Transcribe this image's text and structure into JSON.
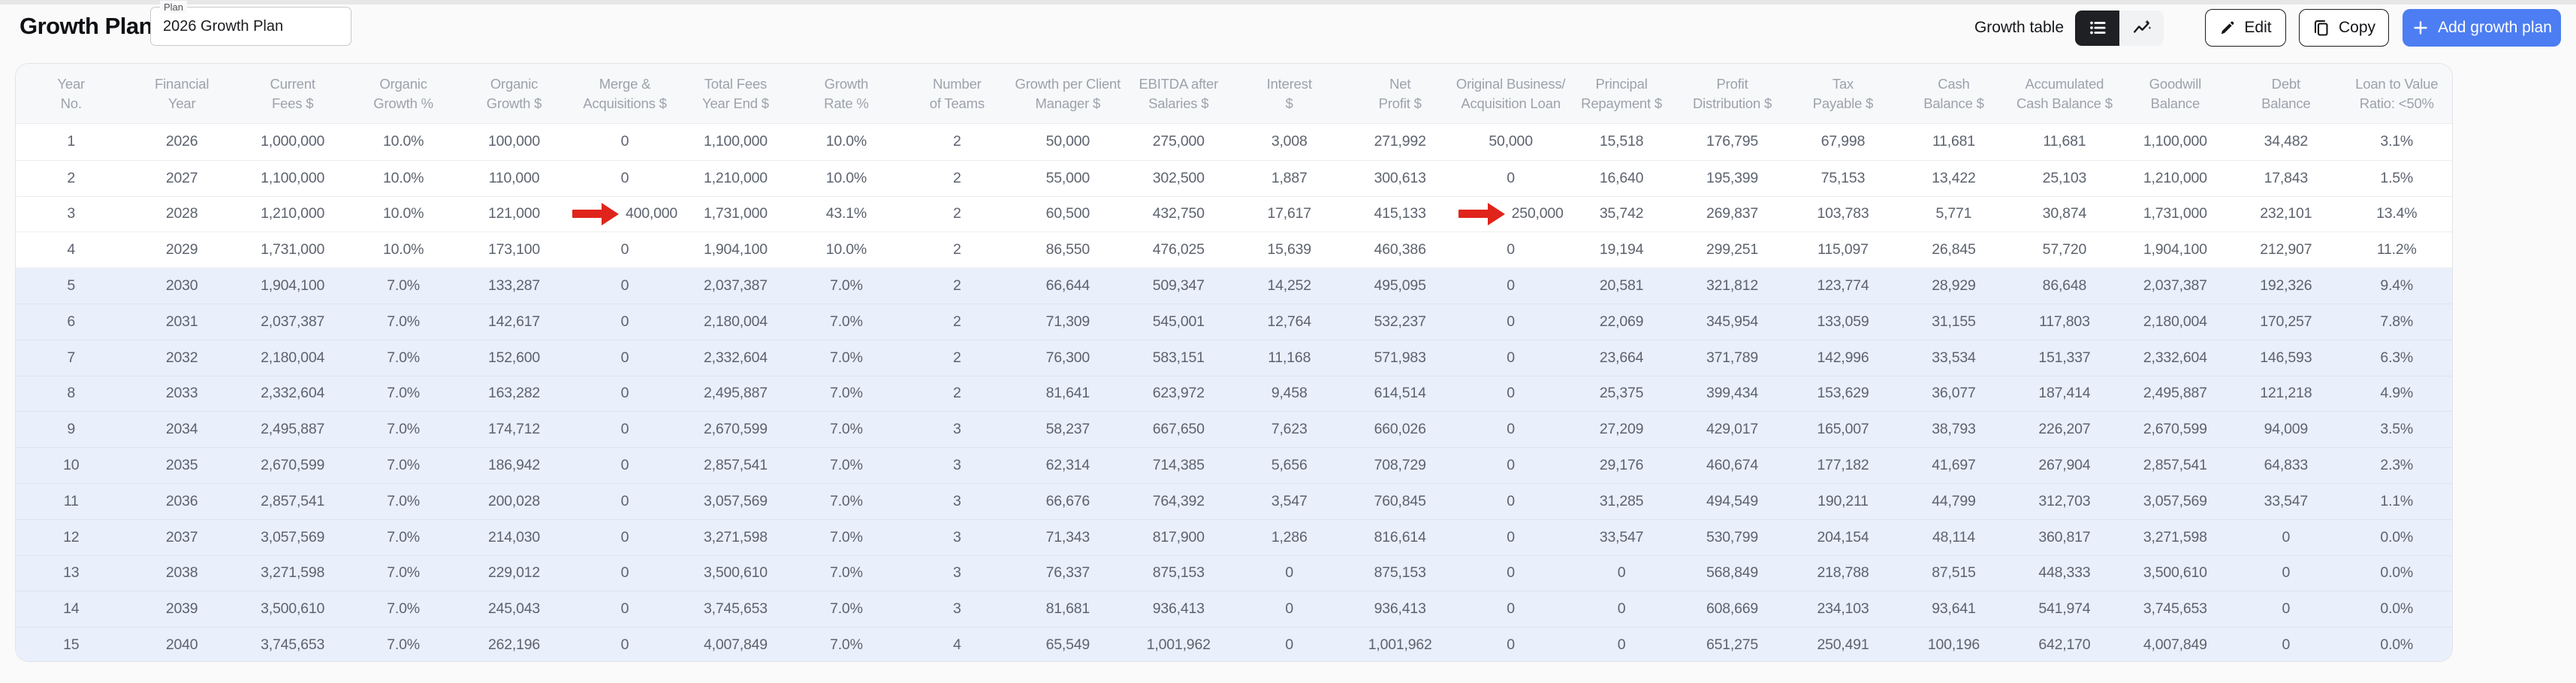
{
  "header": {
    "title": "Growth Plan",
    "plan_field": {
      "label": "Plan",
      "value": "2026 Growth Plan"
    },
    "view_toggle": {
      "label": "Growth table",
      "active": "table",
      "options": [
        "table",
        "chart"
      ]
    },
    "actions": {
      "edit_label": "Edit",
      "copy_label": "Copy",
      "add_label": "Add growth plan"
    }
  },
  "table": {
    "highlighted_rows_from": 5,
    "columns": [
      {
        "key": "year_no",
        "label": "Year\nNo."
      },
      {
        "key": "financial_year",
        "label": "Financial\nYear"
      },
      {
        "key": "current_fees",
        "label": "Current\nFees $"
      },
      {
        "key": "organic_growth_pct",
        "label": "Organic\nGrowth %"
      },
      {
        "key": "organic_growth_amt",
        "label": "Organic\nGrowth $"
      },
      {
        "key": "merge_acquisitions",
        "label": "Merge &\nAcquisitions $"
      },
      {
        "key": "total_fees_year_end",
        "label": "Total Fees\nYear End $"
      },
      {
        "key": "growth_rate_pct",
        "label": "Growth\nRate %"
      },
      {
        "key": "number_of_teams",
        "label": "Number\nof Teams"
      },
      {
        "key": "growth_per_client_manager",
        "label": "Growth per Client\nManager $"
      },
      {
        "key": "ebitda_after_salaries",
        "label": "EBITDA after\nSalaries $"
      },
      {
        "key": "interest",
        "label": "Interest\n$"
      },
      {
        "key": "net_profit",
        "label": "Net\nProfit $"
      },
      {
        "key": "original_business_acquisition_loan",
        "label": "Original Business/\nAcquisition Loan"
      },
      {
        "key": "principal_repayment",
        "label": "Principal\nRepayment $"
      },
      {
        "key": "profit_distribution",
        "label": "Profit\nDistribution $"
      },
      {
        "key": "tax_payable",
        "label": "Tax\nPayable $"
      },
      {
        "key": "cash_balance",
        "label": "Cash\nBalance $"
      },
      {
        "key": "accumulated_cash_balance",
        "label": "Accumulated\nCash Balance $"
      },
      {
        "key": "goodwill_balance",
        "label": "Goodwill\nBalance"
      },
      {
        "key": "debt_balance",
        "label": "Debt\nBalance"
      },
      {
        "key": "loan_to_value_ratio",
        "label": "Loan to Value\nRatio: <50%"
      }
    ],
    "rows": [
      [
        "1",
        "2026",
        "1,000,000",
        "10.0%",
        "100,000",
        "0",
        "1,100,000",
        "10.0%",
        "2",
        "50,000",
        "275,000",
        "3,008",
        "271,992",
        "50,000",
        "15,518",
        "176,795",
        "67,998",
        "11,681",
        "11,681",
        "1,100,000",
        "34,482",
        "3.1%"
      ],
      [
        "2",
        "2027",
        "1,100,000",
        "10.0%",
        "110,000",
        "0",
        "1,210,000",
        "10.0%",
        "2",
        "55,000",
        "302,500",
        "1,887",
        "300,613",
        "0",
        "16,640",
        "195,399",
        "75,153",
        "13,422",
        "25,103",
        "1,210,000",
        "17,843",
        "1.5%"
      ],
      [
        "3",
        "2028",
        "1,210,000",
        "10.0%",
        "121,000",
        "400,000",
        "1,731,000",
        "43.1%",
        "2",
        "60,500",
        "432,750",
        "17,617",
        "415,133",
        "250,000",
        "35,742",
        "269,837",
        "103,783",
        "5,771",
        "30,874",
        "1,731,000",
        "232,101",
        "13.4%"
      ],
      [
        "4",
        "2029",
        "1,731,000",
        "10.0%",
        "173,100",
        "0",
        "1,904,100",
        "10.0%",
        "2",
        "86,550",
        "476,025",
        "15,639",
        "460,386",
        "0",
        "19,194",
        "299,251",
        "115,097",
        "26,845",
        "57,720",
        "1,904,100",
        "212,907",
        "11.2%"
      ],
      [
        "5",
        "2030",
        "1,904,100",
        "7.0%",
        "133,287",
        "0",
        "2,037,387",
        "7.0%",
        "2",
        "66,644",
        "509,347",
        "14,252",
        "495,095",
        "0",
        "20,581",
        "321,812",
        "123,774",
        "28,929",
        "86,648",
        "2,037,387",
        "192,326",
        "9.4%"
      ],
      [
        "6",
        "2031",
        "2,037,387",
        "7.0%",
        "142,617",
        "0",
        "2,180,004",
        "7.0%",
        "2",
        "71,309",
        "545,001",
        "12,764",
        "532,237",
        "0",
        "22,069",
        "345,954",
        "133,059",
        "31,155",
        "117,803",
        "2,180,004",
        "170,257",
        "7.8%"
      ],
      [
        "7",
        "2032",
        "2,180,004",
        "7.0%",
        "152,600",
        "0",
        "2,332,604",
        "7.0%",
        "2",
        "76,300",
        "583,151",
        "11,168",
        "571,983",
        "0",
        "23,664",
        "371,789",
        "142,996",
        "33,534",
        "151,337",
        "2,332,604",
        "146,593",
        "6.3%"
      ],
      [
        "8",
        "2033",
        "2,332,604",
        "7.0%",
        "163,282",
        "0",
        "2,495,887",
        "7.0%",
        "2",
        "81,641",
        "623,972",
        "9,458",
        "614,514",
        "0",
        "25,375",
        "399,434",
        "153,629",
        "36,077",
        "187,414",
        "2,495,887",
        "121,218",
        "4.9%"
      ],
      [
        "9",
        "2034",
        "2,495,887",
        "7.0%",
        "174,712",
        "0",
        "2,670,599",
        "7.0%",
        "3",
        "58,237",
        "667,650",
        "7,623",
        "660,026",
        "0",
        "27,209",
        "429,017",
        "165,007",
        "38,793",
        "226,207",
        "2,670,599",
        "94,009",
        "3.5%"
      ],
      [
        "10",
        "2035",
        "2,670,599",
        "7.0%",
        "186,942",
        "0",
        "2,857,541",
        "7.0%",
        "3",
        "62,314",
        "714,385",
        "5,656",
        "708,729",
        "0",
        "29,176",
        "460,674",
        "177,182",
        "41,697",
        "267,904",
        "2,857,541",
        "64,833",
        "2.3%"
      ],
      [
        "11",
        "2036",
        "2,857,541",
        "7.0%",
        "200,028",
        "0",
        "3,057,569",
        "7.0%",
        "3",
        "66,676",
        "764,392",
        "3,547",
        "760,845",
        "0",
        "31,285",
        "494,549",
        "190,211",
        "44,799",
        "312,703",
        "3,057,569",
        "33,547",
        "1.1%"
      ],
      [
        "12",
        "2037",
        "3,057,569",
        "7.0%",
        "214,030",
        "0",
        "3,271,598",
        "7.0%",
        "3",
        "71,343",
        "817,900",
        "1,286",
        "816,614",
        "0",
        "33,547",
        "530,799",
        "204,154",
        "48,114",
        "360,817",
        "3,271,598",
        "0",
        "0.0%"
      ],
      [
        "13",
        "2038",
        "3,271,598",
        "7.0%",
        "229,012",
        "0",
        "3,500,610",
        "7.0%",
        "3",
        "76,337",
        "875,153",
        "0",
        "875,153",
        "0",
        "0",
        "568,849",
        "218,788",
        "87,515",
        "448,333",
        "3,500,610",
        "0",
        "0.0%"
      ],
      [
        "14",
        "2039",
        "3,500,610",
        "7.0%",
        "245,043",
        "0",
        "3,745,653",
        "7.0%",
        "3",
        "81,681",
        "936,413",
        "0",
        "936,413",
        "0",
        "0",
        "608,669",
        "234,103",
        "93,641",
        "541,974",
        "3,745,653",
        "0",
        "0.0%"
      ],
      [
        "15",
        "2040",
        "3,745,653",
        "7.0%",
        "262,196",
        "0",
        "4,007,849",
        "7.0%",
        "4",
        "65,549",
        "1,001,962",
        "0",
        "1,001,962",
        "0",
        "0",
        "651,275",
        "250,491",
        "100,196",
        "642,170",
        "4,007,849",
        "0",
        "0.0%"
      ]
    ],
    "annotations": [
      {
        "row": 3,
        "col_key": "merge_acquisitions",
        "type": "red-arrow",
        "points_at": "400,000"
      },
      {
        "row": 3,
        "col_key": "original_business_acquisition_loan",
        "type": "red-arrow",
        "points_at": "250,000"
      }
    ]
  },
  "colors": {
    "accent_blue": "#4C7DF2",
    "annotation_red": "#E0241B",
    "highlight_row_bg": "#E9EFFB",
    "header_text": "#9DA2AB",
    "cell_text": "#5D636E"
  }
}
